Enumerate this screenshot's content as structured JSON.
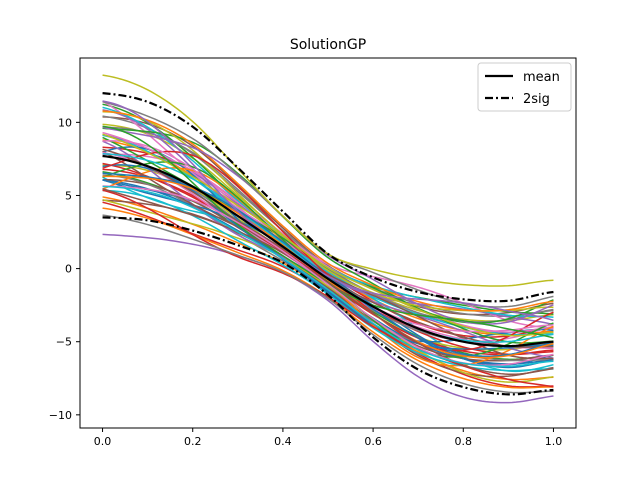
{
  "chart_data": {
    "type": "line",
    "title": "SolutionGP",
    "xlabel": "",
    "ylabel": "",
    "xlim": [
      -0.05,
      1.05
    ],
    "ylim": [
      -10.9,
      14.4
    ],
    "xticks": [
      0.0,
      0.2,
      0.4,
      0.6,
      0.8,
      1.0
    ],
    "xtick_labels": [
      "0.0",
      "0.2",
      "0.4",
      "0.6",
      "0.8",
      "1.0"
    ],
    "yticks": [
      -10,
      -5,
      0,
      5,
      10
    ],
    "ytick_labels": [
      "−10",
      "−5",
      "0",
      "5",
      "10"
    ],
    "grid": false,
    "legend_position": "top-right",
    "sample_count": 60,
    "sample_colors": [
      "#1f77b4",
      "#ff7f0e",
      "#2ca02c",
      "#d62728",
      "#9467bd",
      "#8c564b",
      "#e377c2",
      "#7f7f7f",
      "#bcbd22",
      "#17becf"
    ],
    "x": [
      0.0,
      0.1,
      0.2,
      0.3,
      0.4,
      0.5,
      0.6,
      0.7,
      0.8,
      0.9,
      1.0
    ],
    "mean": {
      "name": "mean",
      "color": "#000000",
      "values": [
        7.7,
        7.0,
        5.6,
        3.6,
        1.5,
        -0.7,
        -2.6,
        -4.1,
        -5.0,
        -5.3,
        -5.0
      ]
    },
    "bands": {
      "name": "2sig",
      "color": "#000000",
      "upper": [
        12.0,
        11.4,
        9.7,
        6.9,
        3.9,
        1.0,
        -0.6,
        -1.6,
        -2.1,
        -2.2,
        -1.6
      ],
      "lower": [
        3.5,
        3.3,
        2.6,
        1.6,
        0.4,
        -1.8,
        -4.7,
        -6.9,
        -8.1,
        -8.6,
        -8.3
      ]
    },
    "legend": [
      {
        "label": "mean",
        "style": "solid"
      },
      {
        "label": "2sig",
        "style": "dashdot"
      }
    ]
  }
}
